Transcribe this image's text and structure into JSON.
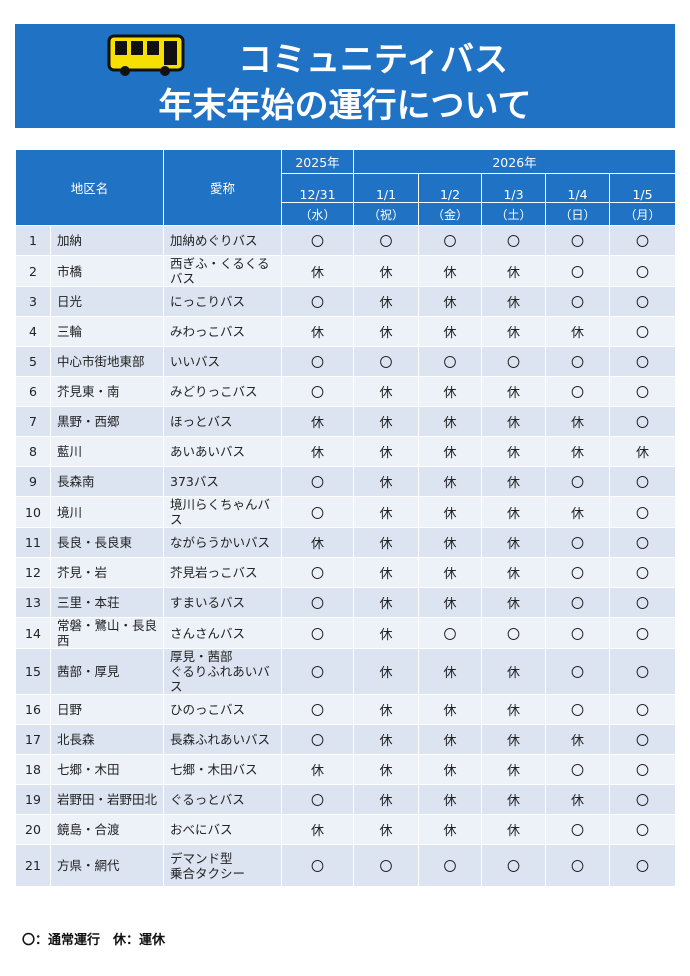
{
  "header": {
    "title_lines": [
      "コミュニティバス",
      "年末年始の運行について"
    ]
  },
  "table": {
    "columns": {
      "area": "地区名",
      "name": "愛称",
      "year1": "2025年",
      "year2": "2026年",
      "dates": [
        "12/31",
        "1/1",
        "1/2",
        "1/3",
        "1/4",
        "1/5"
      ],
      "weekdays": [
        "（水）",
        "（祝）",
        "（金）",
        "（土）",
        "（日）",
        "（月）"
      ]
    },
    "rows": [
      [
        1,
        "加納",
        "加納めぐりバス",
        "〇",
        "〇",
        "〇",
        "〇",
        "〇",
        "〇"
      ],
      [
        2,
        "市橋",
        "西ぎふ・くるくるバス",
        "休",
        "休",
        "休",
        "休",
        "〇",
        "〇"
      ],
      [
        3,
        "日光",
        "にっこりバス",
        "〇",
        "休",
        "休",
        "休",
        "〇",
        "〇"
      ],
      [
        4,
        "三輪",
        "みわっこバス",
        "休",
        "休",
        "休",
        "休",
        "休",
        "〇"
      ],
      [
        5,
        "中心市街地東部",
        "いいバス",
        "〇",
        "〇",
        "〇",
        "〇",
        "〇",
        "〇"
      ],
      [
        6,
        "芥見東・南",
        "みどりっこバス",
        "〇",
        "休",
        "休",
        "休",
        "〇",
        "〇"
      ],
      [
        7,
        "黒野・西郷",
        "ほっとバス",
        "休",
        "休",
        "休",
        "休",
        "休",
        "〇"
      ],
      [
        8,
        "藍川",
        "あいあいバス",
        "休",
        "休",
        "休",
        "休",
        "休",
        "休"
      ],
      [
        9,
        "長森南",
        "373バス",
        "〇",
        "休",
        "休",
        "休",
        "〇",
        "〇"
      ],
      [
        10,
        "境川",
        "境川らくちゃんバス",
        "〇",
        "休",
        "休",
        "休",
        "休",
        "〇"
      ],
      [
        11,
        "長良・長良東",
        "ながらうかいバス",
        "休",
        "休",
        "休",
        "休",
        "〇",
        "〇"
      ],
      [
        12,
        "芥見・岩",
        "芥見岩っこバス",
        "〇",
        "休",
        "休",
        "休",
        "〇",
        "〇"
      ],
      [
        13,
        "三里・本荘",
        "すまいるバス",
        "〇",
        "休",
        "休",
        "休",
        "〇",
        "〇"
      ],
      [
        14,
        "常磐・鷺山・長良西",
        "さんさんバス",
        "〇",
        "休",
        "〇",
        "〇",
        "〇",
        "〇"
      ],
      [
        15,
        "茜部・厚見",
        "厚見・茜部\nぐるりふれあいバス",
        "〇",
        "休",
        "休",
        "休",
        "〇",
        "〇"
      ],
      [
        16,
        "日野",
        "ひのっこバス",
        "〇",
        "休",
        "休",
        "休",
        "〇",
        "〇"
      ],
      [
        17,
        "北長森",
        "長森ふれあいバス",
        "〇",
        "休",
        "休",
        "休",
        "休",
        "〇"
      ],
      [
        18,
        "七郷・木田",
        "七郷・木田バス",
        "休",
        "休",
        "休",
        "休",
        "〇",
        "〇"
      ],
      [
        19,
        "岩野田・岩野田北",
        "ぐるっとバス",
        "〇",
        "休",
        "休",
        "休",
        "休",
        "〇"
      ],
      [
        20,
        "鏡島・合渡",
        "おべにバス",
        "休",
        "休",
        "休",
        "休",
        "〇",
        "〇"
      ],
      [
        21,
        "方県・網代",
        "デマンド型\n乗合タクシー",
        "〇",
        "〇",
        "〇",
        "〇",
        "〇",
        "〇"
      ]
    ]
  },
  "legend": "〇：通常運行　休：運休"
}
